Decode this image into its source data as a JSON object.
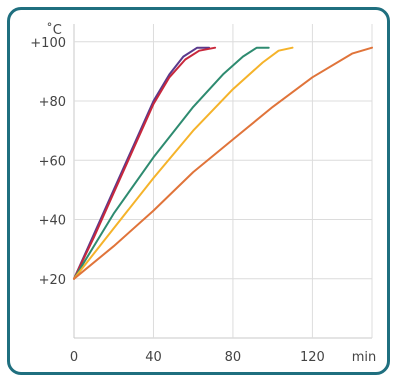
{
  "chart_data": {
    "type": "line",
    "title": "",
    "xlabel": "min",
    "ylabel": "˚C",
    "x_ticks": [
      "0",
      "40",
      "80",
      "120"
    ],
    "y_ticks": [
      "+20",
      "+40",
      "+60",
      "+80",
      "+100"
    ],
    "xlim": [
      0,
      150
    ],
    "ylim": [
      0,
      106
    ],
    "grid": true,
    "series": [
      {
        "color": "#5a3a8c",
        "points": [
          [
            0,
            20
          ],
          [
            10,
            35
          ],
          [
            20,
            50
          ],
          [
            30,
            65
          ],
          [
            40,
            80
          ],
          [
            48,
            89
          ],
          [
            55,
            95
          ],
          [
            62,
            98
          ],
          [
            68,
            98
          ]
        ]
      },
      {
        "color": "#c8283c",
        "points": [
          [
            0,
            20
          ],
          [
            10,
            34
          ],
          [
            20,
            49
          ],
          [
            30,
            64
          ],
          [
            40,
            79
          ],
          [
            48,
            88
          ],
          [
            56,
            94
          ],
          [
            63,
            97
          ],
          [
            71,
            98
          ]
        ]
      },
      {
        "color": "#2e8b70",
        "points": [
          [
            0,
            20
          ],
          [
            20,
            42
          ],
          [
            40,
            61
          ],
          [
            60,
            78
          ],
          [
            75,
            89
          ],
          [
            85,
            95
          ],
          [
            92,
            98
          ],
          [
            98,
            98
          ]
        ]
      },
      {
        "color": "#f5b32a",
        "points": [
          [
            0,
            20
          ],
          [
            20,
            37
          ],
          [
            40,
            54
          ],
          [
            60,
            70
          ],
          [
            80,
            84
          ],
          [
            95,
            93
          ],
          [
            103,
            97
          ],
          [
            110,
            98
          ]
        ]
      },
      {
        "color": "#e0743a",
        "points": [
          [
            0,
            20
          ],
          [
            20,
            31
          ],
          [
            40,
            43
          ],
          [
            60,
            56
          ],
          [
            80,
            67
          ],
          [
            100,
            78
          ],
          [
            120,
            88
          ],
          [
            140,
            96
          ],
          [
            150,
            98
          ]
        ]
      }
    ]
  }
}
